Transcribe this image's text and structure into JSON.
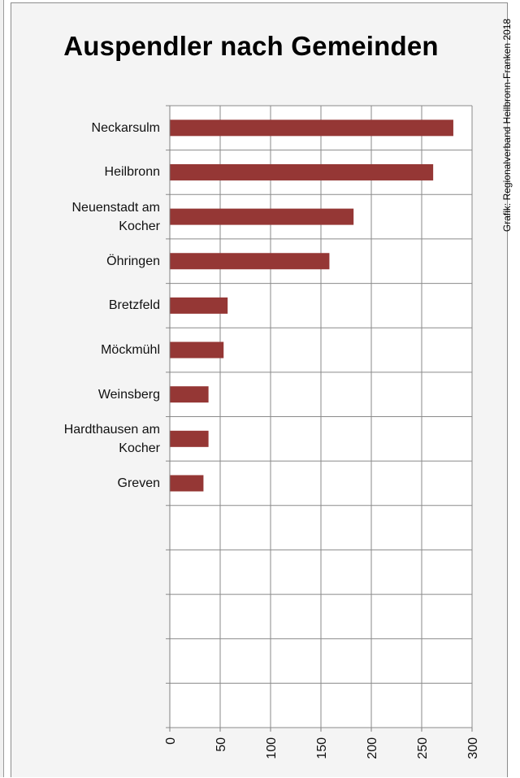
{
  "chart_data": {
    "type": "bar",
    "orientation": "horizontal",
    "title": "Auspendler nach Gemeinden",
    "credit": "Grafik: Regionalverband Heilbronn-Franken 2018",
    "categories": [
      "Neckarsulm",
      "Heilbronn",
      "Neuenstadt am Kocher",
      "Öhringen",
      "Bretzfeld",
      "Möckmühl",
      "Weinsberg",
      "Hardthausen am Kocher",
      "Greven"
    ],
    "category_lines": [
      [
        "Neckarsulm"
      ],
      [
        "Heilbronn"
      ],
      [
        "Neuenstadt am",
        "Kocher"
      ],
      [
        "Öhringen"
      ],
      [
        "Bretzfeld"
      ],
      [
        "Möckmühl"
      ],
      [
        "Weinsberg"
      ],
      [
        "Hardthausen am",
        "Kocher"
      ],
      [
        "Greven"
      ]
    ],
    "values": [
      281,
      261,
      182,
      158,
      57,
      53,
      38,
      38,
      33
    ],
    "xlim": [
      0,
      300
    ],
    "x_ticks": [
      "0",
      "50",
      "100",
      "150",
      "200",
      "250",
      "300"
    ],
    "slot_count": 14,
    "grid": true,
    "bar_color": "#953735"
  }
}
